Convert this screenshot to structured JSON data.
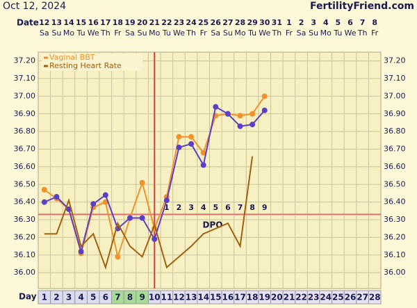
{
  "chart_data": {
    "type": "line",
    "title": "Oct 12, 2024",
    "brand": "FertilityFriend.com",
    "date_label": "Date",
    "day_label": "Day",
    "dpo_label": "DPO",
    "dates": [
      12,
      13,
      14,
      15,
      16,
      17,
      18,
      19,
      20,
      21,
      22,
      23,
      24,
      25,
      26,
      27,
      28,
      29,
      30,
      31,
      1,
      2,
      3,
      4,
      5,
      6,
      7,
      8
    ],
    "weekdays": [
      "Sa",
      "Su",
      "Mo",
      "Tu",
      "We",
      "Th",
      "Fr",
      "Sa",
      "Su",
      "Mo",
      "Tu",
      "We",
      "Th",
      "Fr",
      "Sa",
      "Su",
      "Mo",
      "Tu",
      "We",
      "Th",
      "Fr",
      "Sa",
      "Su",
      "Mo",
      "Tu",
      "We",
      "Th",
      "Fr"
    ],
    "days": [
      1,
      2,
      3,
      4,
      5,
      6,
      7,
      8,
      9,
      10,
      11,
      12,
      13,
      14,
      15,
      16,
      17,
      18,
      19,
      20,
      21,
      22,
      23,
      24,
      25,
      26,
      27,
      28
    ],
    "fertile_days": [
      7,
      8,
      9
    ],
    "dpo": [
      null,
      null,
      null,
      null,
      null,
      null,
      null,
      null,
      null,
      null,
      1,
      2,
      3,
      4,
      5,
      6,
      7,
      8,
      9,
      null,
      null,
      null,
      null,
      null,
      null,
      null,
      null,
      null
    ],
    "ovulation_day": 10,
    "coverline": 36.33,
    "series": [
      {
        "name": "Vaginal BBT",
        "color": "#f0922a",
        "values": [
          36.47,
          36.42,
          36.36,
          36.11,
          36.37,
          36.4,
          36.09,
          36.31,
          36.51,
          36.25,
          36.43,
          36.77,
          36.77,
          36.68,
          36.89,
          36.9,
          36.89,
          36.9,
          37.0,
          null,
          null,
          null,
          null,
          null,
          null,
          null,
          null,
          null
        ]
      },
      {
        "color": "#5b3fc4",
        "values": [
          36.4,
          36.43,
          36.36,
          36.12,
          36.39,
          36.44,
          36.25,
          36.31,
          36.31,
          36.19,
          36.41,
          36.71,
          36.73,
          36.61,
          36.94,
          36.9,
          36.83,
          36.84,
          36.92,
          null,
          null,
          null,
          null,
          null,
          null,
          null,
          null,
          null
        ]
      },
      {
        "name": "Resting Heart Rate",
        "color": "#a0600e",
        "values": [
          36.22,
          36.22,
          36.41,
          36.15,
          36.22,
          36.03,
          36.28,
          36.15,
          36.09,
          36.27,
          36.03,
          36.09,
          36.15,
          36.22,
          36.25,
          36.28,
          36.15,
          36.66,
          null,
          null,
          null,
          null,
          null,
          null,
          null,
          null,
          null,
          null
        ]
      }
    ],
    "ylim": [
      35.91,
      37.25
    ],
    "yticks": [
      {
        "value": 36,
        "label": "36.00"
      },
      {
        "value": 36.1,
        "label": "36.10"
      },
      {
        "value": 36.2,
        "label": "36.20"
      },
      {
        "value": 36.3,
        "label": "36.30"
      },
      {
        "value": 36.4,
        "label": "36.40"
      },
      {
        "value": 36.5,
        "label": "36.50"
      },
      {
        "value": 36.6,
        "label": "36.60"
      },
      {
        "value": 36.7,
        "label": "36.70"
      },
      {
        "value": 36.8,
        "label": "36.80"
      },
      {
        "value": 36.9,
        "label": "36.90"
      },
      {
        "value": 37,
        "label": "37.00"
      },
      {
        "value": 37.1,
        "label": "37.10"
      },
      {
        "value": 37.2,
        "label": "37.20"
      }
    ],
    "grid": true
  }
}
